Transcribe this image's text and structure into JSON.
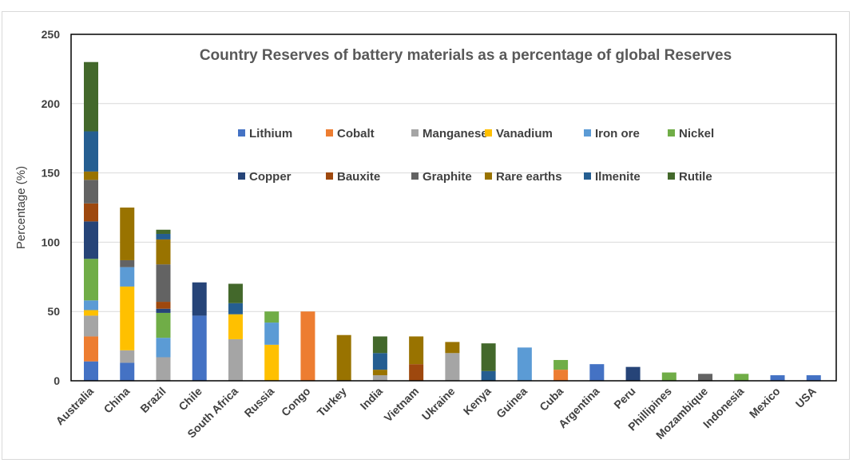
{
  "chart_data": {
    "type": "bar",
    "stacked": true,
    "title": "Country Reserves of battery materials as a percentage of global Reserves",
    "xlabel": "",
    "ylabel": "Percentage (%)",
    "ylim": [
      0,
      250
    ],
    "yticks": [
      "0",
      "50",
      "100",
      "150",
      "200",
      "250"
    ],
    "grid": true,
    "legend_position": "inside-top",
    "categories": [
      "Australia",
      "China",
      "Brazil",
      "Chile",
      "South Africa",
      "Russia",
      "Congo",
      "Turkey",
      "India",
      "Vietnam",
      "Ukraine",
      "Kenya",
      "Guinea",
      "Cuba",
      "Argentina",
      "Peru",
      "Phillipines",
      "Mozambique",
      "Indonesia",
      "Mexico",
      "USA"
    ],
    "series": [
      {
        "name": "Lithium",
        "color": "#4472C4",
        "values": [
          14,
          13,
          0,
          47,
          0,
          0,
          0,
          0,
          0,
          0,
          0,
          0,
          0,
          0,
          12,
          0,
          0,
          0,
          0,
          4,
          4
        ]
      },
      {
        "name": "Cobalt",
        "color": "#ED7D31",
        "values": [
          18,
          0,
          0,
          0,
          0,
          0,
          50,
          0,
          0,
          0,
          0,
          0,
          0,
          8,
          0,
          0,
          0,
          0,
          0,
          0,
          0
        ]
      },
      {
        "name": "Manganese",
        "color": "#A5A5A5",
        "values": [
          15,
          9,
          17,
          0,
          30,
          0,
          0,
          0,
          4,
          0,
          20,
          0,
          0,
          0,
          0,
          0,
          0,
          0,
          0,
          0,
          0
        ]
      },
      {
        "name": "Vanadium",
        "color": "#FFC000",
        "values": [
          4,
          46,
          0,
          0,
          18,
          26,
          0,
          0,
          0,
          0,
          0,
          0,
          0,
          0,
          0,
          0,
          0,
          0,
          0,
          0,
          0
        ]
      },
      {
        "name": "Iron ore",
        "color": "#5B9BD5",
        "values": [
          7,
          14,
          14,
          0,
          0,
          16,
          0,
          0,
          0,
          0,
          0,
          0,
          24,
          0,
          0,
          0,
          0,
          0,
          0,
          0,
          0
        ]
      },
      {
        "name": "Nickel",
        "color": "#70AD47",
        "values": [
          30,
          0,
          18,
          0,
          0,
          8,
          0,
          0,
          0,
          0,
          0,
          0,
          0,
          7,
          0,
          0,
          6,
          0,
          5,
          0,
          0
        ]
      },
      {
        "name": "Copper",
        "color": "#264478",
        "values": [
          27,
          0,
          3,
          24,
          0,
          0,
          0,
          0,
          0,
          0,
          0,
          0,
          0,
          0,
          0,
          10,
          0,
          0,
          0,
          0,
          0
        ]
      },
      {
        "name": "Bauxite",
        "color": "#9E480E",
        "values": [
          13,
          0,
          5,
          0,
          0,
          0,
          0,
          0,
          0,
          12,
          0,
          0,
          0,
          0,
          0,
          0,
          0,
          0,
          0,
          0,
          0
        ]
      },
      {
        "name": "Graphite",
        "color": "#636363",
        "values": [
          17,
          5,
          27,
          0,
          0,
          0,
          0,
          0,
          0,
          0,
          0,
          0,
          0,
          0,
          0,
          0,
          0,
          5,
          0,
          0,
          0
        ]
      },
      {
        "name": "Rare earths",
        "color": "#997300",
        "values": [
          6,
          38,
          18,
          0,
          0,
          0,
          0,
          33,
          4,
          20,
          8,
          0,
          0,
          0,
          0,
          0,
          0,
          0,
          0,
          0,
          0
        ]
      },
      {
        "name": "Ilmenite",
        "color": "#255E91",
        "values": [
          29,
          0,
          4,
          0,
          8,
          0,
          0,
          0,
          12,
          0,
          0,
          7,
          0,
          0,
          0,
          0,
          0,
          0,
          0,
          0,
          0
        ]
      },
      {
        "name": "Rutile",
        "color": "#43682B",
        "values": [
          50,
          0,
          3,
          0,
          14,
          0,
          0,
          0,
          12,
          0,
          0,
          20,
          0,
          0,
          0,
          0,
          0,
          0,
          0,
          0,
          0
        ]
      }
    ]
  }
}
